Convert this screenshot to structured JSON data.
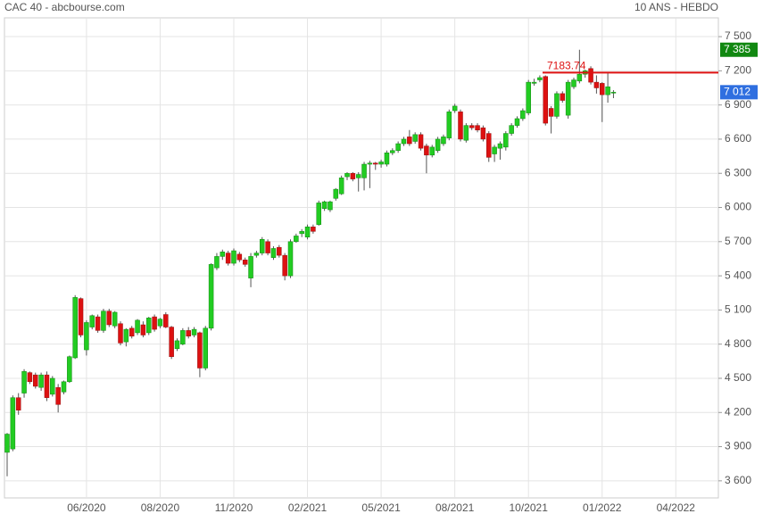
{
  "chart_data": {
    "type": "candlestick",
    "title": "CAC 40 - abcbourse.com",
    "subtitle": "10 ANS - HEBDO",
    "categories": [
      null,
      null,
      null,
      null,
      null,
      null,
      null,
      null,
      null,
      null,
      null,
      null,
      null,
      null,
      "06/2020",
      null,
      null,
      null,
      null,
      null,
      null,
      null,
      null,
      null,
      null,
      null,
      null,
      "08/2020",
      null,
      null,
      null,
      null,
      null,
      null,
      null,
      null,
      null,
      null,
      null,
      null,
      "11/2020",
      null,
      null,
      null,
      null,
      null,
      null,
      null,
      null,
      null,
      null,
      null,
      null,
      "02/2021",
      null,
      null,
      null,
      null,
      null,
      null,
      null,
      null,
      null,
      null,
      null,
      null,
      "05/2021",
      null,
      null,
      null,
      null,
      null,
      null,
      null,
      null,
      null,
      null,
      null,
      null,
      "08/2021",
      null,
      null,
      null,
      null,
      null,
      null,
      null,
      null,
      null,
      null,
      null,
      null,
      "10/2021",
      null,
      null,
      null,
      null,
      null,
      null,
      null,
      null,
      null,
      null,
      null,
      null,
      "01/2022",
      null,
      null,
      null,
      null,
      null,
      null,
      null,
      null,
      null,
      null,
      null,
      null,
      "04/2022"
    ],
    "open": [
      3850,
      3880,
      4330,
      4370,
      4550,
      4530,
      4420,
      4530,
      4360,
      4420,
      4380,
      4470,
      4680,
      5200,
      4750,
      4950,
      5040,
      4920,
      5090,
      4960,
      4980,
      4820,
      4940,
      4900,
      4970,
      4900,
      5040,
      4960,
      5060,
      4950,
      4760,
      4800,
      4920,
      4880,
      4900,
      4590,
      4940,
      5470,
      5570,
      5600,
      5510,
      5590,
      5540,
      5380,
      5580,
      5600,
      5700,
      5560,
      5650,
      5580,
      5400,
      5700,
      5770,
      5740,
      5830,
      5850,
      5990,
      5980,
      6080,
      6120,
      6270,
      6300,
      6260,
      6260,
      6380,
      6390,
      6380,
      6380,
      6480,
      6500,
      6560,
      6620,
      6580,
      6640,
      6540,
      6460,
      6500,
      6560,
      6610,
      6850,
      6840,
      6590,
      6720,
      6720,
      6700,
      6650,
      6470,
      6520,
      6530,
      6650,
      6720,
      6780,
      6830,
      7090,
      7120,
      7150,
      6870,
      6800,
      7000,
      6810,
      7060,
      7110,
      7170,
      7220,
      7100,
      7090,
      6990,
      7010,
      null,
      null,
      null,
      null,
      null,
      null,
      null,
      null,
      null,
      null,
      null
    ],
    "high": [
      4020,
      4350,
      4370,
      4580,
      4560,
      4550,
      4550,
      4560,
      4520,
      4450,
      4480,
      4700,
      5230,
      5210,
      5010,
      5060,
      5060,
      5110,
      5110,
      5090,
      5000,
      4940,
      4960,
      5020,
      5000,
      5040,
      5060,
      5030,
      5080,
      4960,
      4850,
      4940,
      4950,
      4950,
      4910,
      4960,
      5510,
      5600,
      5630,
      5620,
      5640,
      5610,
      5560,
      5600,
      5620,
      5740,
      5720,
      5660,
      5670,
      5600,
      5720,
      5770,
      5810,
      5850,
      5850,
      6060,
      6060,
      6060,
      6170,
      6280,
      6310,
      6310,
      6310,
      6400,
      6410,
      6400,
      6420,
      6500,
      6520,
      6580,
      6620,
      6680,
      6660,
      6660,
      6560,
      6550,
      6620,
      6640,
      6860,
      6910,
      6860,
      6740,
      6740,
      6740,
      6720,
      6670,
      6550,
      6580,
      6670,
      6740,
      6800,
      6870,
      7120,
      7130,
      7160,
      7160,
      6890,
      7020,
      7020,
      7120,
      7140,
      7385,
      7210,
      7240,
      7160,
      7100,
      7180,
      7030,
      null,
      null,
      null,
      null,
      null,
      null,
      null,
      null,
      null,
      null,
      null
    ],
    "low": [
      3640,
      3860,
      4180,
      4330,
      4450,
      4410,
      4390,
      4300,
      4340,
      4200,
      4360,
      4460,
      4670,
      4860,
      4700,
      4930,
      4900,
      4900,
      4950,
      4940,
      4790,
      4780,
      4850,
      4880,
      4860,
      4880,
      4910,
      4940,
      4940,
      4670,
      4740,
      4790,
      4850,
      4860,
      4510,
      4570,
      4920,
      5450,
      5540,
      5490,
      5490,
      5520,
      5480,
      5300,
      5560,
      5580,
      5580,
      5540,
      5560,
      5360,
      5380,
      5690,
      5740,
      5720,
      5770,
      5840,
      5970,
      5960,
      6060,
      6110,
      6240,
      6230,
      6140,
      6150,
      6170,
      6330,
      6350,
      6360,
      6460,
      6480,
      6540,
      6540,
      6560,
      6500,
      6300,
      6440,
      6480,
      6540,
      6590,
      6830,
      6580,
      6570,
      6680,
      6660,
      6580,
      6400,
      6400,
      6420,
      6500,
      6630,
      6700,
      6760,
      6810,
      7070,
      7100,
      6720,
      6650,
      6780,
      6920,
      6780,
      7040,
      7090,
      7140,
      7080,
      7000,
      6750,
      6920,
      6960,
      null,
      null,
      null,
      null,
      null,
      null,
      null,
      null,
      null,
      null,
      null
    ],
    "close": [
      4010,
      4330,
      4220,
      4560,
      4470,
      4430,
      4530,
      4330,
      4500,
      4270,
      4470,
      4690,
      5210,
      4880,
      4990,
      5050,
      4920,
      5090,
      4970,
      5080,
      4810,
      4930,
      4870,
      5010,
      4880,
      5030,
      4930,
      5020,
      4950,
      4690,
      4830,
      4920,
      4870,
      4930,
      4590,
      4940,
      5500,
      5570,
      5610,
      5510,
      5620,
      5540,
      5500,
      5570,
      5600,
      5720,
      5600,
      5640,
      5580,
      5400,
      5700,
      5750,
      5790,
      5830,
      5790,
      6040,
      6050,
      6050,
      6160,
      6260,
      6300,
      6250,
      6290,
      6380,
      6390,
      6380,
      6400,
      6480,
      6500,
      6560,
      6600,
      6560,
      6640,
      6520,
      6460,
      6530,
      6600,
      6620,
      6840,
      6890,
      6600,
      6720,
      6700,
      6680,
      6600,
      6440,
      6530,
      6560,
      6650,
      6720,
      6780,
      6850,
      7100,
      7100,
      7140,
      6740,
      6800,
      7000,
      6940,
      7100,
      7120,
      7170,
      7200,
      7100,
      7050,
      6990,
      7060,
      7012,
      null,
      null,
      null,
      null,
      null,
      null,
      null,
      null,
      null,
      null,
      null
    ],
    "up_color": "#22cc22",
    "down_color": "#dd1111",
    "ylim": [
      3450,
      7665
    ],
    "yticks": [
      {
        "value": 3600,
        "label": "3 600"
      },
      {
        "value": 3900,
        "label": "3 900"
      },
      {
        "value": 4200,
        "label": "4 200"
      },
      {
        "value": 4500,
        "label": "4 500"
      },
      {
        "value": 4800,
        "label": "4 800"
      },
      {
        "value": 5100,
        "label": "5 100"
      },
      {
        "value": 5400,
        "label": "5 400"
      },
      {
        "value": 5700,
        "label": "5 700"
      },
      {
        "value": 6000,
        "label": "6 000"
      },
      {
        "value": 6300,
        "label": "6 300"
      },
      {
        "value": 6600,
        "label": "6 600"
      },
      {
        "value": 6900,
        "label": "6 900"
      },
      {
        "value": 7200,
        "label": "7 200"
      },
      {
        "value": 7500,
        "label": "7 500"
      }
    ],
    "grid": true,
    "reference_line": {
      "value": 7183.74,
      "color": "#dd1111"
    },
    "high_price": {
      "value": 7385,
      "label": "7 385",
      "color": "#118811"
    },
    "last_price": {
      "value": 7012,
      "label": "7 012",
      "color": "#2f6fe0"
    }
  }
}
